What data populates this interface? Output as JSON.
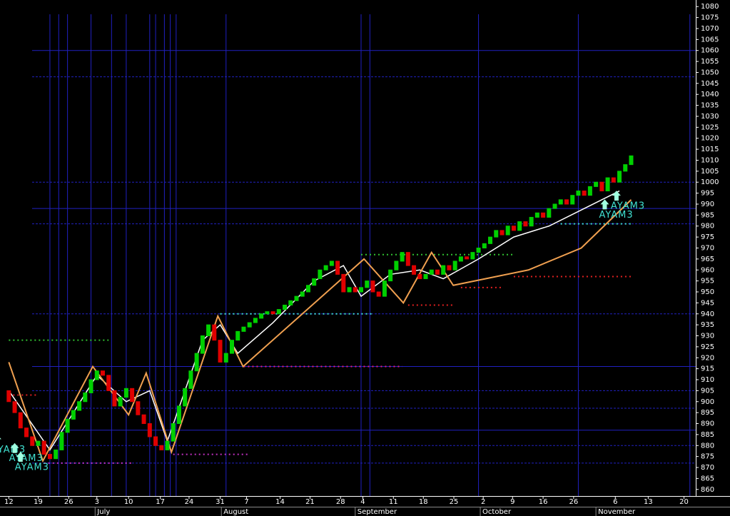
{
  "chart_data": {
    "type": "candlestick",
    "open": [
      905,
      900,
      895,
      888,
      884,
      880,
      882,
      876,
      874,
      878,
      886,
      892,
      896,
      900,
      904,
      910,
      914,
      912,
      905,
      898,
      902,
      906,
      900,
      894,
      890,
      884,
      880,
      878,
      882,
      890,
      898,
      906,
      914,
      922,
      930,
      935,
      928,
      918,
      922,
      928,
      932,
      934,
      936,
      938,
      940,
      941,
      940,
      942,
      944,
      946,
      948,
      950,
      953,
      956,
      960,
      962,
      964,
      958,
      950,
      952,
      950,
      952,
      955,
      950,
      948,
      955,
      960,
      964,
      968,
      962,
      958,
      956,
      958,
      960,
      958,
      962,
      960,
      964,
      966,
      965,
      968,
      970,
      972,
      975,
      978,
      976,
      980,
      978,
      982,
      980,
      984,
      986,
      984,
      988,
      990,
      992,
      990,
      994,
      996,
      994,
      998,
      1000,
      996,
      1002,
      1000,
      1005,
      1008
    ],
    "close": [
      900,
      895,
      888,
      884,
      880,
      882,
      876,
      874,
      878,
      886,
      892,
      896,
      900,
      904,
      910,
      914,
      912,
      905,
      898,
      902,
      906,
      900,
      894,
      890,
      884,
      880,
      878,
      882,
      890,
      898,
      906,
      914,
      922,
      930,
      935,
      928,
      918,
      922,
      928,
      932,
      934,
      936,
      938,
      940,
      941,
      940,
      942,
      944,
      946,
      948,
      950,
      953,
      956,
      960,
      962,
      964,
      958,
      950,
      952,
      950,
      952,
      955,
      950,
      948,
      955,
      960,
      964,
      968,
      962,
      958,
      956,
      958,
      960,
      958,
      962,
      960,
      964,
      966,
      965,
      968,
      970,
      972,
      975,
      978,
      976,
      980,
      978,
      982,
      980,
      984,
      986,
      984,
      988,
      990,
      992,
      990,
      994,
      996,
      994,
      998,
      1000,
      996,
      1002,
      1000,
      1005,
      1008,
      1012
    ],
    "up_color": "#00d000",
    "down_color": "#e00000",
    "series": [
      {
        "color": "#ffffff",
        "x": [
          0,
          7,
          15,
          20,
          24,
          27,
          33,
          36,
          39,
          45,
          52,
          57,
          60,
          65,
          70,
          74,
          80,
          86,
          92,
          98,
          104
        ],
        "values": [
          905,
          878,
          912,
          900,
          905,
          882,
          928,
          935,
          922,
          936,
          955,
          962,
          948,
          958,
          960,
          956,
          965,
          975,
          980,
          988,
          996
        ]
      },
      {
        "color": "#f0a050",
        "x": [
          0,
          5.8,
          14.3,
          20.4,
          23.4,
          27.7,
          35.6,
          39.9,
          60.5,
          67.2,
          72,
          75.7,
          88.5,
          97.5,
          106
        ],
        "values": [
          918,
          873,
          916,
          894,
          913,
          877,
          939,
          916,
          965,
          945,
          968,
          953,
          960,
          970,
          992
        ]
      }
    ],
    "levels": [
      {
        "value": 928,
        "from": 0,
        "to": 17,
        "color": "#30c030"
      },
      {
        "value": 903,
        "from": 0,
        "to": 5,
        "color": "#e02020"
      },
      {
        "value": 872,
        "from": 6,
        "to": 21,
        "color": "#c030c0"
      },
      {
        "value": 876,
        "from": 28,
        "to": 41,
        "color": "#c030c0"
      },
      {
        "value": 940,
        "from": 36,
        "to": 62,
        "color": "#40e0d0"
      },
      {
        "value": 916,
        "from": 40,
        "to": 67,
        "color": "#e02080"
      },
      {
        "value": 967,
        "from": 60,
        "to": 86,
        "color": "#30c030"
      },
      {
        "value": 944,
        "from": 68,
        "to": 76,
        "color": "#e02020"
      },
      {
        "value": 952,
        "from": 77,
        "to": 84,
        "color": "#e02020"
      },
      {
        "value": 957,
        "from": 86,
        "to": 106,
        "color": "#e02020"
      },
      {
        "value": 981,
        "from": 94,
        "to": 106,
        "color": "#40e0d0"
      }
    ],
    "hlines": [
      1060,
      1048,
      1000,
      988,
      981,
      940,
      916,
      905,
      897,
      887,
      880,
      872
    ],
    "vlines": [
      7,
      8.5,
      10,
      14,
      17.5,
      20,
      24,
      25,
      26.5,
      27.5,
      28.5,
      37,
      60,
      61.5,
      80,
      97,
      116
    ],
    "annotations": [
      {
        "text": "AYAM3",
        "x": -2,
        "y": 878
      },
      {
        "text": "AYAM3",
        "x": 1,
        "y": 874
      },
      {
        "text": "AYAM3",
        "x": 2,
        "y": 870
      },
      {
        "text": "AYAM3",
        "x": 103.5,
        "y": 989
      },
      {
        "text": "AYAM3",
        "x": 101.5,
        "y": 985
      }
    ],
    "xlim": [
      -1.5,
      117
    ],
    "ylim": [
      857,
      1083
    ],
    "yticks": [
      860,
      865,
      870,
      875,
      880,
      885,
      890,
      895,
      900,
      905,
      910,
      915,
      920,
      925,
      930,
      935,
      940,
      945,
      950,
      955,
      960,
      965,
      970,
      975,
      980,
      985,
      990,
      995,
      1000,
      1005,
      1010,
      1015,
      1020,
      1025,
      1030,
      1035,
      1040,
      1045,
      1050,
      1055,
      1060,
      1065,
      1070,
      1075,
      1080
    ],
    "xticks": [
      {
        "value": 0,
        "label": "12"
      },
      {
        "value": 5,
        "label": "19"
      },
      {
        "value": 10.2,
        "label": "26"
      },
      {
        "value": 15,
        "label": "3"
      },
      {
        "value": 20.4,
        "label": "10"
      },
      {
        "value": 25.8,
        "label": "17"
      },
      {
        "value": 30.7,
        "label": "24"
      },
      {
        "value": 36,
        "label": "31"
      },
      {
        "value": 40.5,
        "label": "7"
      },
      {
        "value": 46.2,
        "label": "14"
      },
      {
        "value": 51.3,
        "label": "21"
      },
      {
        "value": 56.5,
        "label": "28"
      },
      {
        "value": 60.3,
        "label": "4"
      },
      {
        "value": 65.5,
        "label": "11"
      },
      {
        "value": 70.6,
        "label": "18"
      },
      {
        "value": 75.8,
        "label": "25"
      },
      {
        "value": 80.8,
        "label": "2"
      },
      {
        "value": 85.8,
        "label": "9"
      },
      {
        "value": 91,
        "label": "16"
      },
      {
        "value": 96.2,
        "label": "26"
      },
      {
        "value": 103.3,
        "label": "6"
      },
      {
        "value": 108.9,
        "label": "13"
      },
      {
        "value": 115,
        "label": "20"
      }
    ],
    "months": [
      {
        "value": 14.7,
        "label": "July"
      },
      {
        "value": 36.2,
        "label": "August"
      },
      {
        "value": 59,
        "label": "September"
      },
      {
        "value": 80.3,
        "label": "October"
      },
      {
        "value": 100,
        "label": "November"
      }
    ]
  }
}
